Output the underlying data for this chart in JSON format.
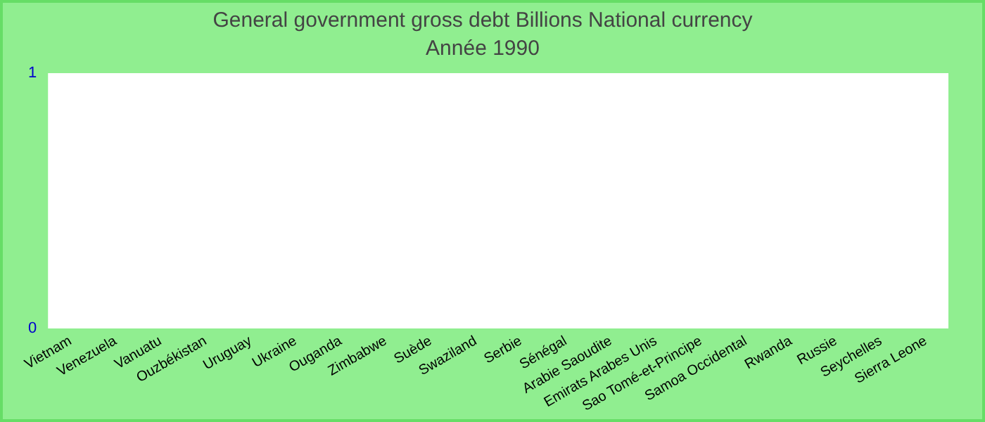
{
  "chart_data": {
    "type": "bar",
    "title": "General government gross debt Billions National currency",
    "subtitle": "Année 1990",
    "categories": [
      "Vietnam",
      "Venezuela",
      "Vanuatu",
      "Ouzbékistan",
      "Uruguay",
      "Ukraine",
      "Ouganda",
      "Zimbabwe",
      "Suède",
      "Swaziland",
      "Serbie",
      "Sénégal",
      "Arabie Saoudite",
      "Emirats Arabes Unis",
      "Sao Tomé-et-Principe",
      "Samoa Occidental",
      "Rwanda",
      "Russie",
      "Seychelles",
      "Sierra Leone"
    ],
    "values": [
      null,
      null,
      null,
      null,
      null,
      null,
      null,
      null,
      null,
      null,
      null,
      null,
      null,
      null,
      null,
      null,
      null,
      null,
      null,
      null
    ],
    "ylim": [
      0,
      1
    ],
    "yticks": [
      0,
      1
    ],
    "grid": false,
    "legend": false
  }
}
